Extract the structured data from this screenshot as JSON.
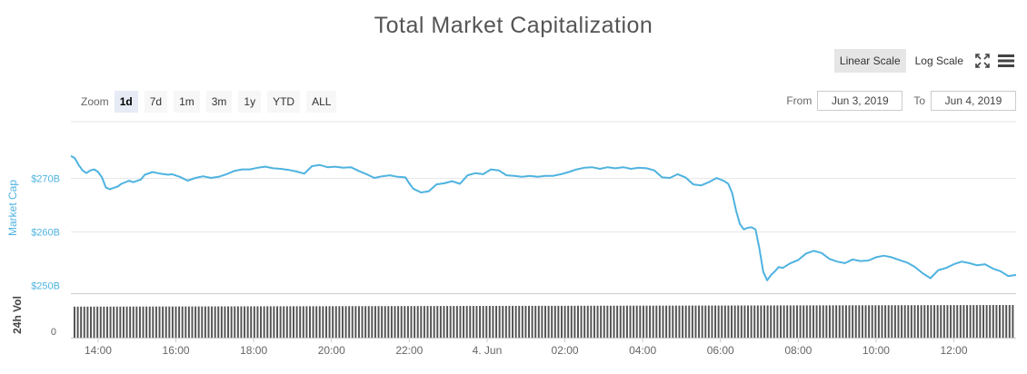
{
  "title": "Total Market Capitalization",
  "scale_controls": {
    "linear": "Linear Scale",
    "log": "Log Scale",
    "active": "linear"
  },
  "icons": {
    "fullscreen": "fullscreen-icon",
    "menu": "hamburger-menu-icon"
  },
  "zoom": {
    "label": "Zoom",
    "options": [
      "1d",
      "7d",
      "1m",
      "3m",
      "1y",
      "YTD",
      "ALL"
    ],
    "active": "1d"
  },
  "range": {
    "from_label": "From",
    "from": "Jun 3, 2019",
    "to_label": "To",
    "to": "Jun 4, 2019"
  },
  "colors": {
    "line": "#4fb3e0",
    "volume": "#555555",
    "grid": "#e6e6e6",
    "axis_title": "#4fb3e0"
  },
  "chart_data": {
    "type": "line",
    "ylabel": "Market Cap",
    "yticks": [
      {
        "label": "$250B",
        "value": 250
      },
      {
        "label": "$260B",
        "value": 260
      },
      {
        "label": "$270B",
        "value": 270
      }
    ],
    "ylim": [
      248.6,
      280.6
    ],
    "xticks": [
      {
        "label": "14:00",
        "hour": 14
      },
      {
        "label": "16:00",
        "hour": 16
      },
      {
        "label": "18:00",
        "hour": 18
      },
      {
        "label": "20:00",
        "hour": 20
      },
      {
        "label": "22:00",
        "hour": 22
      },
      {
        "label": "4. Jun",
        "hour": 24
      },
      {
        "label": "02:00",
        "hour": 26
      },
      {
        "label": "04:00",
        "hour": 28
      },
      {
        "label": "06:00",
        "hour": 30
      },
      {
        "label": "08:00",
        "hour": 32
      },
      {
        "label": "10:00",
        "hour": 34
      },
      {
        "label": "12:00",
        "hour": 36
      }
    ],
    "xlim": [
      13.3,
      37.6
    ],
    "series": [
      {
        "x": [
          13.3,
          13.4,
          13.5,
          13.6,
          13.7,
          13.8,
          13.9,
          14.0,
          14.1,
          14.2,
          14.3,
          14.5,
          14.6,
          14.8,
          14.9,
          15.1,
          15.2,
          15.4,
          15.6,
          15.8,
          15.9,
          16.1,
          16.3,
          16.5,
          16.7,
          16.9,
          17.1,
          17.3,
          17.5,
          17.7,
          17.9,
          18.1,
          18.3,
          18.5,
          18.7,
          18.9,
          19.1,
          19.3,
          19.5,
          19.7,
          19.9,
          20.1,
          20.3,
          20.5,
          20.7,
          20.9,
          21.1,
          21.3,
          21.5,
          21.7,
          21.9,
          22.0,
          22.1,
          22.3,
          22.5,
          22.7,
          22.9,
          23.1,
          23.3,
          23.5,
          23.7,
          23.9,
          24.1,
          24.3,
          24.5,
          24.7,
          24.9,
          25.1,
          25.3,
          25.5,
          25.7,
          25.9,
          26.1,
          26.3,
          26.5,
          26.7,
          26.9,
          27.1,
          27.3,
          27.5,
          27.7,
          27.9,
          28.1,
          28.3,
          28.5,
          28.7,
          28.9,
          29.1,
          29.3,
          29.5,
          29.7,
          29.9,
          30.1,
          30.2,
          30.3,
          30.4,
          30.5,
          30.6,
          30.7,
          30.8,
          30.9,
          31.0,
          31.1,
          31.2,
          31.3,
          31.4,
          31.5,
          31.6,
          31.8,
          32.0,
          32.2,
          32.4,
          32.6,
          32.8,
          33.0,
          33.2,
          33.4,
          33.6,
          33.8,
          34.0,
          34.2,
          34.4,
          34.6,
          34.8,
          35.0,
          35.2,
          35.4,
          35.6,
          35.8,
          36.0,
          36.2,
          36.4,
          36.6,
          36.8,
          37.0,
          37.2,
          37.4,
          37.6
        ],
        "y": [
          274.2,
          273.8,
          272.5,
          271.5,
          271.0,
          271.5,
          271.7,
          271.2,
          270.2,
          268.3,
          268.0,
          268.5,
          269.0,
          269.6,
          269.3,
          269.8,
          270.7,
          271.2,
          270.9,
          270.7,
          270.8,
          270.3,
          269.6,
          270.1,
          270.4,
          270.1,
          270.3,
          270.8,
          271.4,
          271.7,
          271.7,
          272.0,
          272.2,
          271.9,
          271.8,
          271.6,
          271.3,
          270.9,
          272.3,
          272.5,
          272.1,
          272.2,
          272.0,
          272.1,
          271.4,
          270.8,
          270.1,
          270.4,
          270.6,
          270.3,
          270.2,
          269.1,
          268.1,
          267.4,
          267.6,
          268.9,
          269.1,
          269.5,
          269.0,
          270.6,
          271.0,
          270.8,
          271.7,
          271.5,
          270.6,
          270.5,
          270.3,
          270.5,
          270.3,
          270.5,
          270.5,
          270.8,
          271.2,
          271.7,
          272.0,
          272.1,
          271.8,
          272.1,
          271.9,
          272.1,
          271.8,
          272.0,
          271.9,
          271.5,
          270.2,
          270.1,
          270.8,
          270.2,
          268.9,
          268.7,
          269.3,
          270.1,
          269.5,
          269.0,
          267.3,
          264.0,
          261.5,
          260.5,
          260.8,
          260.9,
          260.5,
          257.0,
          252.6,
          251.0,
          252.0,
          252.7,
          253.5,
          253.3,
          254.2,
          254.8,
          256.0,
          256.5,
          256.1,
          255.0,
          254.5,
          254.2,
          254.9,
          254.6,
          254.7,
          255.3,
          255.6,
          255.3,
          254.8,
          254.3,
          253.5,
          252.3,
          251.4,
          252.9,
          253.3,
          254.0,
          254.5,
          254.2,
          253.8,
          254.0,
          253.2,
          252.7,
          251.8,
          252.0
        ]
      }
    ],
    "volume": {
      "label": "24h Vol",
      "zero_label": "0",
      "bar_count": 288,
      "start_level": 0.95,
      "end_level": 1.0
    }
  }
}
